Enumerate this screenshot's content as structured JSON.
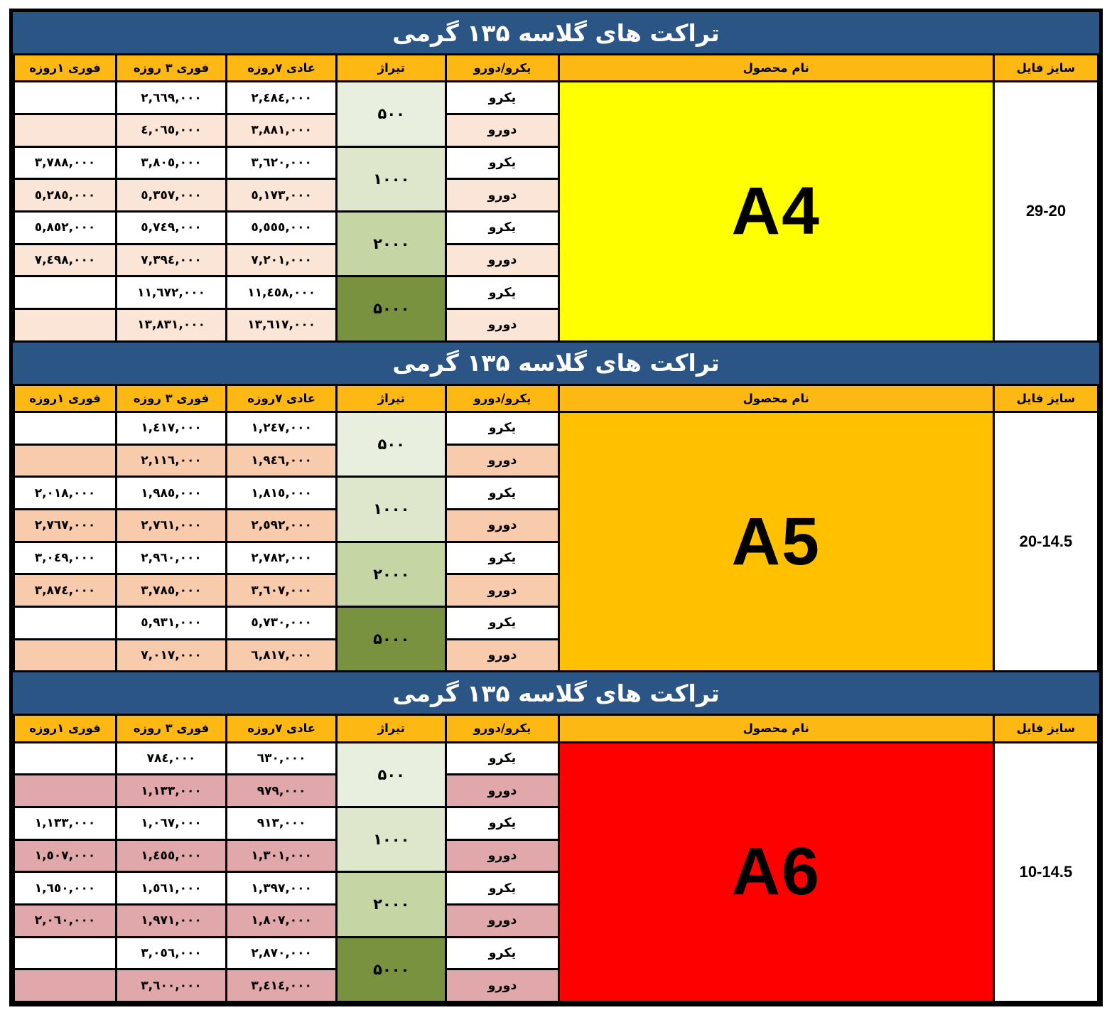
{
  "section_title": "تراکت های گلاسه ۱۳۵ گرمی",
  "colors": {
    "title_bar_bg": "#2A5585",
    "title_text": "#FFFFFF",
    "header_row_bg": "#FDB813",
    "grid_line": "#000000"
  },
  "columns": {
    "fast1": "فوری ۱روزه",
    "fast3": "فوری ۳ روزه",
    "normal7": "عادی ۷روزه",
    "tiraj": "تیراژ",
    "side": "یکرو/دورو",
    "name": "نام محصول",
    "size": "سایز فایل"
  },
  "sides": {
    "single": "یکرو",
    "double": "دورو"
  },
  "tiraj_levels": [
    {
      "label": "۵۰۰",
      "color": "#E9EFDE"
    },
    {
      "label": "۱۰۰۰",
      "color": "#DEE7CB"
    },
    {
      "label": "۲۰۰۰",
      "color": "#C5D6A4"
    },
    {
      "label": "۵۰۰۰",
      "color": "#78923F"
    }
  ],
  "sections": [
    {
      "product": "A4",
      "size": "29-20",
      "colors": {
        "product_bg": "#FFFF00",
        "double_row": "#FBE5D6"
      },
      "rows": [
        {
          "f1": "",
          "f3": "٢,٦٦٩,٠٠٠",
          "n7": "٢,٤٨٤,٠٠٠"
        },
        {
          "f1": "",
          "f3": "٤,٠٦٥,٠٠٠",
          "n7": "٣,٨٨١,٠٠٠"
        },
        {
          "f1": "٣,٧٨٨,٠٠٠",
          "f3": "٣,٨٠٥,٠٠٠",
          "n7": "٣,٦٢٠,٠٠٠"
        },
        {
          "f1": "٥,٢٨٥,٠٠٠",
          "f3": "٥,٣٥٧,٠٠٠",
          "n7": "٥,١٧٣,٠٠٠"
        },
        {
          "f1": "٥,٨٥٢,٠٠٠",
          "f3": "٥,٧٤٩,٠٠٠",
          "n7": "٥,٥٥٥,٠٠٠"
        },
        {
          "f1": "٧,٤٩٨,٠٠٠",
          "f3": "٧,٣٩٤,٠٠٠",
          "n7": "٧,٢٠١,٠٠٠"
        },
        {
          "f1": "",
          "f3": "١١,٦٧٢,٠٠٠",
          "n7": "١١,٤٥٨,٠٠٠"
        },
        {
          "f1": "",
          "f3": "١٣,٨٣١,٠٠٠",
          "n7": "١٣,٦١٧,٠٠٠"
        }
      ]
    },
    {
      "product": "A5",
      "size": "20-14.5",
      "colors": {
        "product_bg": "#FFC000",
        "double_row": "#F8CBAD"
      },
      "rows": [
        {
          "f1": "",
          "f3": "١,٤١٧,٠٠٠",
          "n7": "١,٢٤٧,٠٠٠"
        },
        {
          "f1": "",
          "f3": "٢,١١٦,٠٠٠",
          "n7": "١,٩٤٦,٠٠٠"
        },
        {
          "f1": "٢,٠١٨,٠٠٠",
          "f3": "١,٩٨٥,٠٠٠",
          "n7": "١,٨١٥,٠٠٠"
        },
        {
          "f1": "٢,٧٦٧,٠٠٠",
          "f3": "٢,٧٦١,٠٠٠",
          "n7": "٢,٥٩٢,٠٠٠"
        },
        {
          "f1": "٣,٠٤٩,٠٠٠",
          "f3": "٢,٩٦٠,٠٠٠",
          "n7": "٢,٧٨٢,٠٠٠"
        },
        {
          "f1": "٣,٨٧٤,٠٠٠",
          "f3": "٣,٧٨٥,٠٠٠",
          "n7": "٣,٦٠٧,٠٠٠"
        },
        {
          "f1": "",
          "f3": "٥,٩٣١,٠٠٠",
          "n7": "٥,٧٣٠,٠٠٠"
        },
        {
          "f1": "",
          "f3": "٧,٠١٧,٠٠٠",
          "n7": "٦,٨١٧,٠٠٠"
        }
      ]
    },
    {
      "product": "A6",
      "size": "10-14.5",
      "colors": {
        "product_bg": "#FF0000",
        "double_row": "#E0A8AB"
      },
      "rows": [
        {
          "f1": "",
          "f3": "٧٨٤,٠٠٠",
          "n7": "٦٣٠,٠٠٠"
        },
        {
          "f1": "",
          "f3": "١,١٣٣,٠٠٠",
          "n7": "٩٧٩,٠٠٠"
        },
        {
          "f1": "١,١٣٣,٠٠٠",
          "f3": "١,٠٦٧,٠٠٠",
          "n7": "٩١٣,٠٠٠"
        },
        {
          "f1": "١,٥٠٧,٠٠٠",
          "f3": "١,٤٥٥,٠٠٠",
          "n7": "١,٣٠١,٠٠٠"
        },
        {
          "f1": "١,٦٥٠,٠٠٠",
          "f3": "١,٥٦١,٠٠٠",
          "n7": "١,٣٩٧,٠٠٠"
        },
        {
          "f1": "٢,٠٦٠,٠٠٠",
          "f3": "١,٩٧١,٠٠٠",
          "n7": "١,٨٠٧,٠٠٠"
        },
        {
          "f1": "",
          "f3": "٣,٠٥٦,٠٠٠",
          "n7": "٢,٨٧٠,٠٠٠"
        },
        {
          "f1": "",
          "f3": "٣,٦٠٠,٠٠٠",
          "n7": "٣,٤١٤,٠٠٠"
        }
      ]
    }
  ]
}
